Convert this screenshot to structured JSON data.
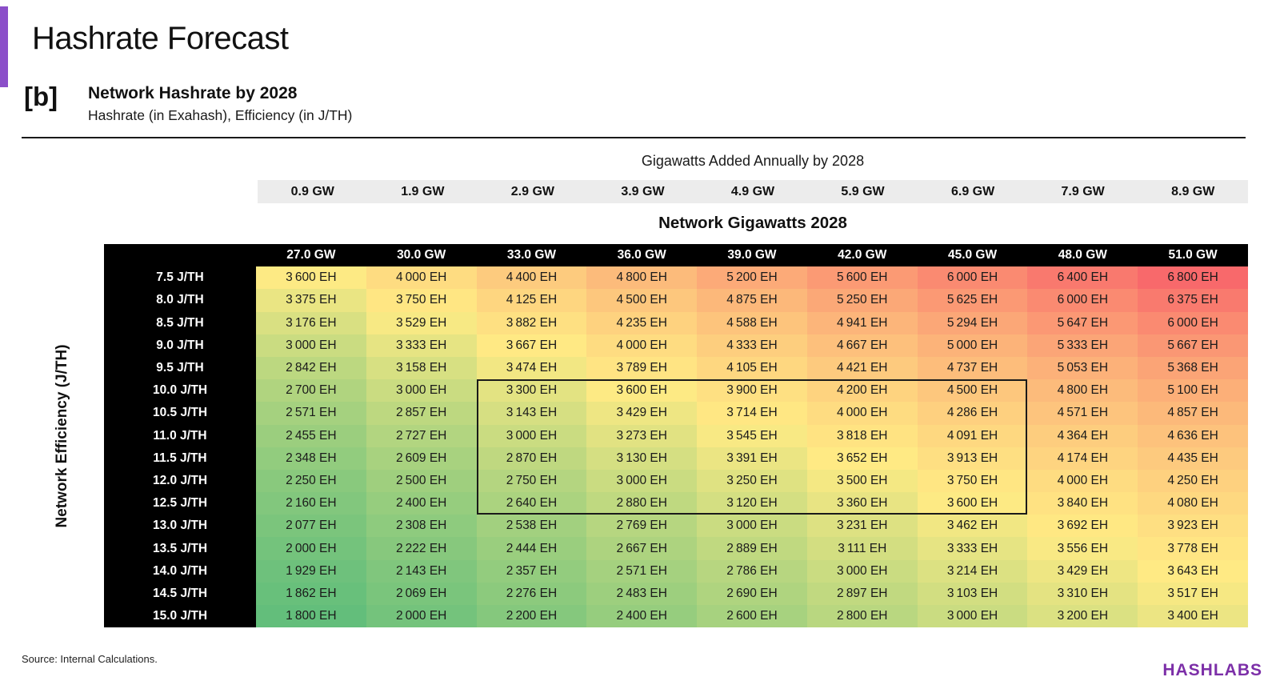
{
  "page": {
    "title": "Hashrate Forecast",
    "section_label": "[b]",
    "section_title": "Network Hashrate by 2028",
    "section_subtitle": "Hashrate (in Exahash), Efficiency (in J/TH)",
    "source": "Source: Internal Calculations.",
    "brand": "HASHLABS",
    "accent_color": "#8B4FC9",
    "brand_color": "#7C2FA8"
  },
  "chart_data": {
    "type": "heatmap",
    "title": "Network Hashrate by 2028",
    "unit": "EH",
    "value_format": "space-thousands, suffix EH",
    "top_axis": {
      "label": "Gigawatts Added Annually by 2028",
      "ticks": [
        "0.9 GW",
        "1.9 GW",
        "2.9 GW",
        "3.9 GW",
        "4.9 GW",
        "5.9 GW",
        "6.9 GW",
        "7.9 GW",
        "8.9 GW"
      ]
    },
    "x_axis": {
      "label": "Network Gigawatts 2028",
      "ticks": [
        "27.0 GW",
        "30.0 GW",
        "33.0 GW",
        "36.0 GW",
        "39.0 GW",
        "42.0 GW",
        "45.0 GW",
        "48.0 GW",
        "51.0 GW"
      ]
    },
    "y_axis": {
      "label": "Network Efficiency (J/TH)",
      "ticks": [
        "7.5 J/TH",
        "8.0 J/TH",
        "8.5 J/TH",
        "9.0 J/TH",
        "9.5 J/TH",
        "10.0 J/TH",
        "10.5 J/TH",
        "11.0 J/TH",
        "11.5 J/TH",
        "12.0 J/TH",
        "12.5 J/TH",
        "13.0 J/TH",
        "13.5 J/TH",
        "14.0 J/TH",
        "14.5 J/TH",
        "15.0 J/TH"
      ]
    },
    "values": [
      [
        3600,
        4000,
        4400,
        4800,
        5200,
        5600,
        6000,
        6400,
        6800
      ],
      [
        3375,
        3750,
        4125,
        4500,
        4875,
        5250,
        5625,
        6000,
        6375
      ],
      [
        3176,
        3529,
        3882,
        4235,
        4588,
        4941,
        5294,
        5647,
        6000
      ],
      [
        3000,
        3333,
        3667,
        4000,
        4333,
        4667,
        5000,
        5333,
        5667
      ],
      [
        2842,
        3158,
        3474,
        3789,
        4105,
        4421,
        4737,
        5053,
        5368
      ],
      [
        2700,
        3000,
        3300,
        3600,
        3900,
        4200,
        4500,
        4800,
        5100
      ],
      [
        2571,
        2857,
        3143,
        3429,
        3714,
        4000,
        4286,
        4571,
        4857
      ],
      [
        2455,
        2727,
        3000,
        3273,
        3545,
        3818,
        4091,
        4364,
        4636
      ],
      [
        2348,
        2609,
        2870,
        3130,
        3391,
        3652,
        3913,
        4174,
        4435
      ],
      [
        2250,
        2500,
        2750,
        3000,
        3250,
        3500,
        3750,
        4000,
        4250
      ],
      [
        2160,
        2400,
        2640,
        2880,
        3120,
        3360,
        3600,
        3840,
        4080
      ],
      [
        2077,
        2308,
        2538,
        2769,
        3000,
        3231,
        3462,
        3692,
        3923
      ],
      [
        2000,
        2222,
        2444,
        2667,
        2889,
        3111,
        3333,
        3556,
        3778
      ],
      [
        1929,
        2143,
        2357,
        2571,
        2786,
        3000,
        3214,
        3429,
        3643
      ],
      [
        1862,
        2069,
        2276,
        2483,
        2690,
        2897,
        3103,
        3310,
        3517
      ],
      [
        1800,
        2000,
        2200,
        2400,
        2600,
        2800,
        3000,
        3200,
        3400
      ]
    ],
    "color_scale": {
      "min": 1800,
      "mid": 3624,
      "max": 6800,
      "min_color": "#63BE7B",
      "mid_color": "#FFEB84",
      "max_color": "#F8696B"
    },
    "highlight_box": {
      "row_start": 5,
      "row_end": 10,
      "col_start": 2,
      "col_end": 6
    }
  }
}
